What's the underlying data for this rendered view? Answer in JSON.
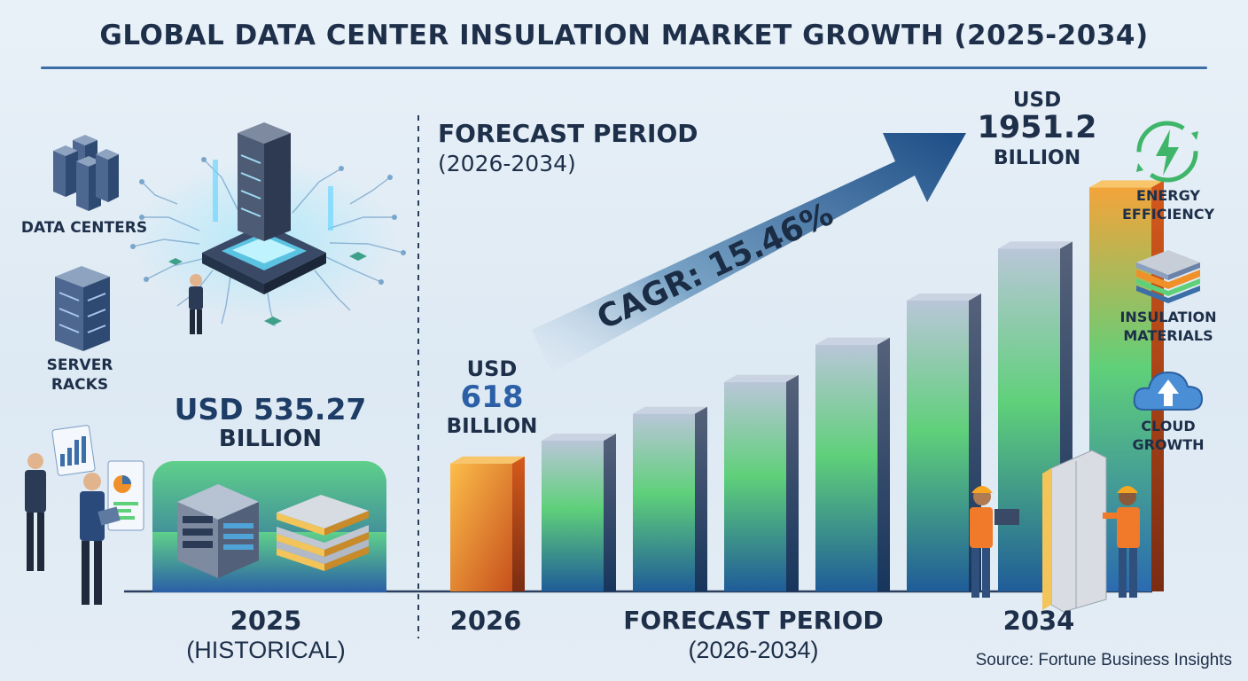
{
  "title": "GLOBAL DATA CENTER INSULATION MARKET GROWTH (2025-2034)",
  "forecast_header": {
    "line1": "FORECAST PERIOD",
    "line2": "(2026-2034)"
  },
  "left_icons": {
    "data_centers": "DATA CENTERS",
    "server_racks_1": "SERVER",
    "server_racks_2": "RACKS"
  },
  "right_icons": {
    "energy_1": "ENERGY",
    "energy_2": "EFFICIENCY",
    "insulation_1": "INSULATION",
    "insulation_2": "MATERIALS",
    "cloud_1": "CLOUD",
    "cloud_2": "GROWTH"
  },
  "historical": {
    "value_line1": "USD 535.27",
    "value_line2": "BILLION",
    "year": "2025",
    "sub": "(HISTORICAL)"
  },
  "value_2026": {
    "line1": "USD",
    "line2": "618",
    "line3": "BILLION"
  },
  "value_2034": {
    "line1": "USD",
    "line2": "1951.2",
    "line3": "BILLION"
  },
  "cagr": "CAGR: 15.46%",
  "axis": {
    "x_2026": "2026",
    "x_mid_1": "FORECAST PERIOD",
    "x_mid_2": "(2026-2034)",
    "x_2034": "2034"
  },
  "source": "Source: Fortune Business Insights",
  "colors": {
    "accent": "#3c6ea8",
    "orange": "#f0902a",
    "green": "#5fd07a",
    "navy": "#1e2f4a"
  },
  "chart_data": {
    "type": "bar",
    "title": "GLOBAL DATA CENTER INSULATION MARKET GROWTH (2025-2034)",
    "unit": "USD Billion",
    "categories": [
      "2025",
      "2026",
      "",
      "",
      "",
      "",
      "",
      "",
      "2034"
    ],
    "values": [
      535.27,
      618,
      null,
      null,
      null,
      null,
      null,
      null,
      1951.2
    ],
    "value_labels": [
      "USD 535.27 BILLION",
      "USD 618 BILLION",
      "",
      "",
      "",
      "",
      "",
      "",
      "USD 1951.2 BILLION"
    ],
    "annotations": [
      "CAGR: 15.46%"
    ],
    "ylim": [
      0,
      2000
    ],
    "grid": false,
    "legend": "none"
  }
}
